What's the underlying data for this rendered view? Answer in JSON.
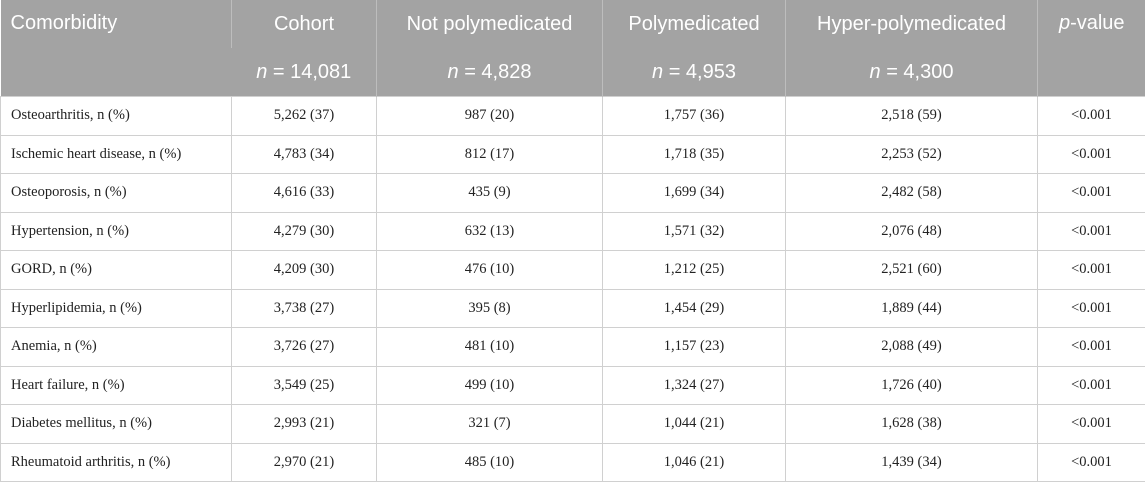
{
  "header": {
    "columns": [
      {
        "label": "Comorbidity",
        "n": ""
      },
      {
        "label": "Cohort",
        "n_prefix": "n",
        "n_value": " = 14,081"
      },
      {
        "label": "Not polymedicated",
        "n_prefix": "n",
        "n_value": " = 4,828"
      },
      {
        "label": "Polymedicated",
        "n_prefix": "n",
        "n_value": " = 4,953"
      },
      {
        "label": "Hyper-polymedicated",
        "n_prefix": "n",
        "n_value": " = 4,300"
      },
      {
        "label_italic": "p",
        "label_rest": "-value"
      }
    ]
  },
  "rows": [
    {
      "comorbidity": "Osteoarthritis, n (%)",
      "cohort": "5,262 (37)",
      "not_poly": "987 (20)",
      "poly": "1,757 (36)",
      "hyper_poly": "2,518 (59)",
      "p": "<0.001"
    },
    {
      "comorbidity": "Ischemic heart disease, n (%)",
      "cohort": "4,783 (34)",
      "not_poly": "812 (17)",
      "poly": "1,718 (35)",
      "hyper_poly": "2,253 (52)",
      "p": "<0.001"
    },
    {
      "comorbidity": "Osteoporosis, n (%)",
      "cohort": "4,616 (33)",
      "not_poly": "435 (9)",
      "poly": "1,699 (34)",
      "hyper_poly": "2,482 (58)",
      "p": "<0.001"
    },
    {
      "comorbidity": "Hypertension, n (%)",
      "cohort": "4,279 (30)",
      "not_poly": "632 (13)",
      "poly": "1,571 (32)",
      "hyper_poly": "2,076 (48)",
      "p": "<0.001"
    },
    {
      "comorbidity": "GORD, n (%)",
      "cohort": "4,209 (30)",
      "not_poly": "476 (10)",
      "poly": "1,212 (25)",
      "hyper_poly": "2,521 (60)",
      "p": "<0.001"
    },
    {
      "comorbidity": "Hyperlipidemia, n (%)",
      "cohort": "3,738 (27)",
      "not_poly": "395 (8)",
      "poly": "1,454 (29)",
      "hyper_poly": "1,889 (44)",
      "p": "<0.001"
    },
    {
      "comorbidity": "Anemia, n (%)",
      "cohort": "3,726 (27)",
      "not_poly": "481 (10)",
      "poly": "1,157 (23)",
      "hyper_poly": "2,088 (49)",
      "p": "<0.001"
    },
    {
      "comorbidity": "Heart failure, n (%)",
      "cohort": "3,549 (25)",
      "not_poly": "499 (10)",
      "poly": "1,324 (27)",
      "hyper_poly": "1,726 (40)",
      "p": "<0.001"
    },
    {
      "comorbidity": "Diabetes mellitus, n (%)",
      "cohort": "2,993 (21)",
      "not_poly": "321 (7)",
      "poly": "1,044 (21)",
      "hyper_poly": "1,628 (38)",
      "p": "<0.001"
    },
    {
      "comorbidity": "Rheumatoid arthritis, n (%)",
      "cohort": "2,970 (21)",
      "not_poly": "485 (10)",
      "poly": "1,046 (21)",
      "hyper_poly": "1,439 (34)",
      "p": "<0.001"
    }
  ],
  "colors": {
    "header_bg": "#a3a3a3",
    "header_text": "#ffffff",
    "border": "#d0d0d0"
  }
}
